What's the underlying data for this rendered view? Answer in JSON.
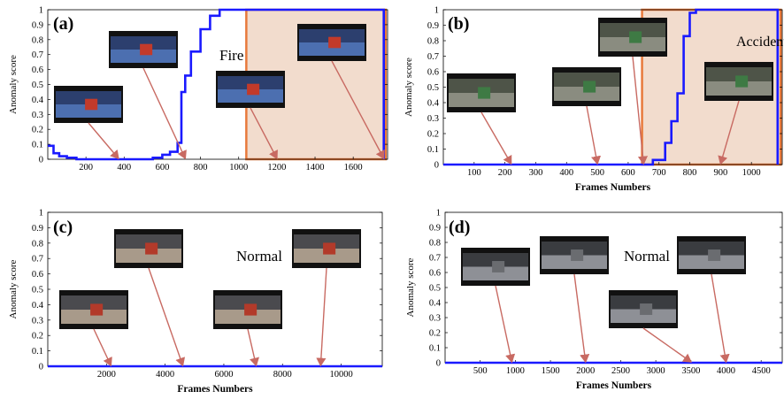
{
  "chart_data": [
    {
      "type": "line",
      "panel_label": "(a)",
      "annotation": "Fire",
      "xlabel": "",
      "ylabel": "Anomaly score",
      "xlim": [
        0,
        1780
      ],
      "ylim": [
        0,
        1
      ],
      "xticks": [
        200,
        400,
        600,
        800,
        1000,
        1200,
        1400,
        1600
      ],
      "yticks": [
        0,
        0.1,
        0.2,
        0.3,
        0.4,
        0.5,
        0.6,
        0.7,
        0.8,
        0.9,
        1
      ],
      "highlight_range": [
        1040,
        1770
      ],
      "series": [
        {
          "x": [
            0,
            30,
            30,
            60,
            60,
            100,
            100,
            150,
            150,
            550,
            550,
            600,
            600,
            640,
            640,
            680,
            680,
            700,
            700,
            720,
            720,
            750,
            750,
            800,
            800,
            850,
            850,
            900,
            900,
            1760,
            1760
          ],
          "y": [
            0.09,
            0.09,
            0.04,
            0.04,
            0.02,
            0.02,
            0.01,
            0.01,
            0,
            0,
            0.01,
            0.01,
            0.03,
            0.03,
            0.05,
            0.05,
            0.11,
            0.11,
            0.45,
            0.45,
            0.56,
            0.56,
            0.72,
            0.72,
            0.87,
            0.87,
            0.96,
            0.96,
            1,
            1,
            0
          ]
        }
      ],
      "arrows_to_x": [
        370,
        720,
        1200,
        1760
      ],
      "color": "#1a1aff"
    },
    {
      "type": "line",
      "panel_label": "(b)",
      "annotation": "Accident",
      "xlabel": "Frames Numbers",
      "ylabel": "Anomaly score",
      "xlim": [
        0,
        1100
      ],
      "ylim": [
        0,
        1
      ],
      "xticks": [
        100,
        200,
        300,
        400,
        500,
        600,
        700,
        800,
        900,
        1000
      ],
      "yticks": [
        0,
        0.1,
        0.2,
        0.3,
        0.4,
        0.5,
        0.6,
        0.7,
        0.8,
        0.9,
        1
      ],
      "highlight_range": [
        645,
        1095
      ],
      "series": [
        {
          "x": [
            0,
            680,
            680,
            720,
            720,
            740,
            740,
            760,
            760,
            780,
            780,
            800,
            800,
            820,
            820,
            1085,
            1085
          ],
          "y": [
            0,
            0,
            0.03,
            0.03,
            0.14,
            0.14,
            0.28,
            0.28,
            0.46,
            0.46,
            0.83,
            0.83,
            0.98,
            0.98,
            1,
            1,
            0
          ]
        }
      ],
      "arrows_to_x": [
        220,
        500,
        650,
        900
      ],
      "color": "#1a1aff"
    },
    {
      "type": "line",
      "panel_label": "(c)",
      "annotation": "Normal",
      "xlabel": "Frames Numbers",
      "ylabel": "Anomaly score",
      "xlim": [
        0,
        11400
      ],
      "ylim": [
        0,
        1
      ],
      "xticks": [
        2000,
        4000,
        6000,
        8000,
        10000
      ],
      "yticks": [
        0,
        0.1,
        0.2,
        0.3,
        0.4,
        0.5,
        0.6,
        0.7,
        0.8,
        0.9,
        1
      ],
      "series": [
        {
          "x": [
            0,
            11400
          ],
          "y": [
            0,
            0
          ]
        }
      ],
      "arrows_to_x": [
        2150,
        4600,
        7100,
        9300
      ],
      "color": "#1a1aff"
    },
    {
      "type": "line",
      "panel_label": "(d)",
      "annotation": "Normal",
      "xlabel": "Frames Numbers",
      "ylabel": "Anomaly score",
      "xlim": [
        0,
        4800
      ],
      "ylim": [
        0,
        1
      ],
      "xticks": [
        500,
        1000,
        1500,
        2000,
        2500,
        3000,
        3500,
        4000,
        4500
      ],
      "yticks": [
        0,
        0.1,
        0.2,
        0.3,
        0.4,
        0.5,
        0.6,
        0.7,
        0.8,
        0.9,
        1
      ],
      "series": [
        {
          "x": [
            0,
            4800
          ],
          "y": [
            0,
            0
          ]
        }
      ],
      "arrows_to_x": [
        950,
        2000,
        3500,
        4000
      ],
      "color": "#1a1aff"
    }
  ],
  "colors": {
    "line": "#1a1aff",
    "arrow": "#c86a62",
    "highlight_fill": "#f2dccd",
    "highlight_border": "#e87a3c"
  },
  "images": {
    "depicts": [
      "bus-interior-thumbnail",
      "traffic-camera-thumbnail",
      "bus-exterior-thumbnail",
      "parking-camera-thumbnail"
    ]
  }
}
